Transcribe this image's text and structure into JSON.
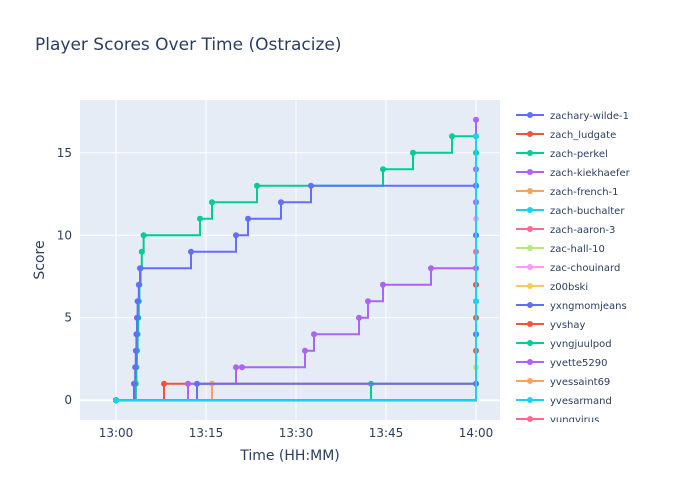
{
  "chart_data": {
    "type": "line",
    "title": "Player Scores Over Time (Ostracize)",
    "xlabel": "Time (HH:MM)",
    "ylabel": "Score",
    "x_unit": "minutes after 13:00",
    "xlim": [
      -6,
      64
    ],
    "ylim": [
      -1.2,
      18.2
    ],
    "x_ticks": [
      {
        "v": 0,
        "label": "13:00"
      },
      {
        "v": 15,
        "label": "13:15"
      },
      {
        "v": 30,
        "label": "13:30"
      },
      {
        "v": 45,
        "label": "13:45"
      },
      {
        "v": 60,
        "label": "14:00"
      }
    ],
    "y_ticks": [
      {
        "v": 0,
        "label": "0"
      },
      {
        "v": 5,
        "label": "5"
      },
      {
        "v": 10,
        "label": "10"
      },
      {
        "v": 15,
        "label": "15"
      }
    ],
    "grid": true,
    "legend_position": "right",
    "series": [
      {
        "name": "zachary-wilde-1",
        "color": "#636efa",
        "points": [
          [
            0,
            0
          ],
          [
            60,
            13
          ]
        ]
      },
      {
        "name": "zach_ludgate",
        "color": "#ef553b",
        "points": [
          [
            0,
            0
          ],
          [
            8,
            1
          ],
          [
            60,
            3
          ]
        ]
      },
      {
        "name": "zach-perkel",
        "color": "#00cc96",
        "points": [
          [
            0,
            0
          ],
          [
            3.3,
            1
          ],
          [
            3.4,
            2
          ],
          [
            3.5,
            3
          ],
          [
            3.6,
            4
          ],
          [
            3.7,
            5
          ],
          [
            3.8,
            6
          ],
          [
            3.9,
            7
          ],
          [
            4.1,
            8
          ],
          [
            4.3,
            9
          ],
          [
            4.6,
            10
          ],
          [
            14,
            11
          ],
          [
            16,
            12
          ],
          [
            23.5,
            13
          ],
          [
            44.5,
            14
          ],
          [
            49.5,
            15
          ],
          [
            56,
            16
          ],
          [
            60,
            16
          ]
        ]
      },
      {
        "name": "zach-kiekhaefer",
        "color": "#ab63fa",
        "points": [
          [
            0,
            0
          ],
          [
            12,
            1
          ],
          [
            20,
            2
          ],
          [
            21,
            2
          ],
          [
            31.5,
            3
          ],
          [
            33,
            4
          ],
          [
            40.5,
            5
          ],
          [
            42,
            6
          ],
          [
            44.5,
            7
          ],
          [
            52.5,
            8
          ],
          [
            60,
            17
          ]
        ]
      },
      {
        "name": "zach-french-1",
        "color": "#ffa15a",
        "points": [
          [
            0,
            0
          ],
          [
            60,
            1
          ]
        ]
      },
      {
        "name": "zach-buchalter",
        "color": "#19d3f3",
        "points": [
          [
            0,
            0
          ],
          [
            60,
            13
          ]
        ]
      },
      {
        "name": "zach-aaron-3",
        "color": "#ff6692",
        "points": [
          [
            0,
            0
          ],
          [
            60,
            7
          ]
        ]
      },
      {
        "name": "zac-hall-10",
        "color": "#b6e880",
        "points": [
          [
            0,
            0
          ],
          [
            60,
            2
          ]
        ]
      },
      {
        "name": "zac-chouinard",
        "color": "#ff97ff",
        "points": [
          [
            0,
            0
          ],
          [
            60,
            11
          ]
        ]
      },
      {
        "name": "z00bski",
        "color": "#fecb52",
        "points": [
          [
            0,
            0
          ],
          [
            60,
            1
          ]
        ]
      },
      {
        "name": "yxngmomjeans",
        "color": "#636efa",
        "points": [
          [
            0,
            0
          ],
          [
            3,
            1
          ],
          [
            3.2,
            2
          ],
          [
            3.3,
            3
          ],
          [
            3.4,
            4
          ],
          [
            3.5,
            5
          ],
          [
            3.6,
            6
          ],
          [
            3.8,
            7
          ],
          [
            4,
            8
          ],
          [
            12.5,
            9
          ],
          [
            20,
            10
          ],
          [
            22,
            11
          ],
          [
            27.5,
            12
          ],
          [
            32.5,
            13
          ],
          [
            60,
            13
          ]
        ]
      },
      {
        "name": "yvshay",
        "color": "#ef553b",
        "points": [
          [
            0,
            0
          ],
          [
            60,
            7
          ]
        ]
      },
      {
        "name": "yvngjuulpod",
        "color": "#00cc96",
        "points": [
          [
            0,
            0
          ],
          [
            42.5,
            1
          ],
          [
            60,
            6
          ]
        ]
      },
      {
        "name": "yvette5290",
        "color": "#ab63fa",
        "points": [
          [
            0,
            0
          ],
          [
            60,
            14
          ]
        ]
      },
      {
        "name": "yvessaint69",
        "color": "#ffa15a",
        "points": [
          [
            0,
            0
          ],
          [
            16,
            1
          ],
          [
            60,
            1
          ]
        ]
      },
      {
        "name": "yvesarmand",
        "color": "#19d3f3",
        "points": [
          [
            0,
            0
          ],
          [
            60,
            6
          ]
        ]
      },
      {
        "name": "yungvirus",
        "color": "#ff6692",
        "points": [
          [
            0,
            0
          ],
          [
            60,
            9
          ]
        ]
      },
      {
        "name": "",
        "color": "#636efa",
        "points": [
          [
            0,
            0
          ],
          [
            13.5,
            1
          ],
          [
            60,
            1
          ]
        ]
      },
      {
        "name": "",
        "color": "#636efa",
        "points": [
          [
            0,
            0
          ],
          [
            60,
            4
          ]
        ]
      },
      {
        "name": "",
        "color": "#ab63fa",
        "points": [
          [
            0,
            0
          ],
          [
            60,
            8
          ]
        ]
      },
      {
        "name": "",
        "color": "#ef553b",
        "points": [
          [
            0,
            0
          ],
          [
            60,
            5
          ]
        ]
      },
      {
        "name": "",
        "color": "#ab63fa",
        "points": [
          [
            0,
            0
          ],
          [
            60,
            12
          ]
        ]
      },
      {
        "name": "",
        "color": "#636efa",
        "points": [
          [
            0,
            0
          ],
          [
            60,
            10
          ]
        ]
      },
      {
        "name": "",
        "color": "#00cc96",
        "points": [
          [
            0,
            0
          ],
          [
            60,
            15
          ]
        ]
      },
      {
        "name": "",
        "color": "#19d3f3",
        "points": [
          [
            0,
            0
          ],
          [
            60,
            16
          ]
        ]
      }
    ]
  }
}
